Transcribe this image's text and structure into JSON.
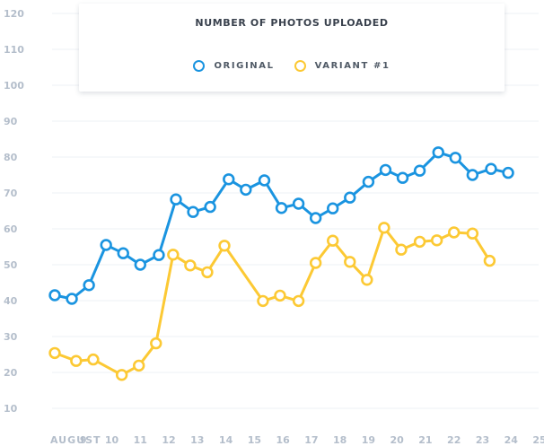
{
  "chart_data": {
    "type": "line",
    "title": "NUMBER OF PHOTOS UPLOADED",
    "xlabel": "",
    "ylabel": "",
    "grid": true,
    "legend": "top-center",
    "ylim": [
      10,
      120
    ],
    "yticks": [
      10,
      20,
      30,
      40,
      50,
      60,
      70,
      80,
      90,
      100,
      110,
      120
    ],
    "x": [
      8,
      8.5,
      9,
      9.5,
      10,
      10.5,
      11,
      11.5,
      12,
      12.5,
      13,
      13.5,
      14,
      14.5,
      15,
      15.5,
      16,
      16.5,
      17,
      17.5,
      18,
      18.5,
      19,
      19.5,
      20,
      20.5,
      21,
      21.5,
      22,
      22.5,
      23,
      23.5,
      24.5
    ],
    "xlim": [
      8,
      25
    ],
    "xticks": [
      8,
      9,
      10,
      11,
      12,
      13,
      14,
      15,
      16,
      17,
      18,
      19,
      20,
      21,
      22,
      23,
      24,
      25
    ],
    "xtick_labels": [
      "AUGUST",
      "9",
      "10",
      "11",
      "12",
      "13",
      "14",
      "15",
      "16",
      "17",
      "18",
      "19",
      "20",
      "21",
      "22",
      "23",
      "24",
      "25"
    ],
    "series": [
      {
        "name": "ORIGINAL",
        "color": "#1a94e0",
        "points": [
          {
            "x": 8.0,
            "y": 41.5
          },
          {
            "x": 8.6,
            "y": 40.5
          },
          {
            "x": 9.2,
            "y": 44.3
          },
          {
            "x": 9.8,
            "y": 55.5
          },
          {
            "x": 10.4,
            "y": 53.2
          },
          {
            "x": 11.0,
            "y": 50.0
          },
          {
            "x": 11.65,
            "y": 52.7
          },
          {
            "x": 12.25,
            "y": 68.2
          },
          {
            "x": 12.85,
            "y": 64.7
          },
          {
            "x": 13.45,
            "y": 66.1
          },
          {
            "x": 14.1,
            "y": 73.8
          },
          {
            "x": 14.7,
            "y": 70.9
          },
          {
            "x": 15.35,
            "y": 73.5
          },
          {
            "x": 15.95,
            "y": 65.8
          },
          {
            "x": 16.55,
            "y": 67.0
          },
          {
            "x": 17.15,
            "y": 63.0
          },
          {
            "x": 17.75,
            "y": 65.7
          },
          {
            "x": 18.35,
            "y": 68.7
          },
          {
            "x": 19.0,
            "y": 73.1
          },
          {
            "x": 19.6,
            "y": 76.4
          },
          {
            "x": 20.2,
            "y": 74.2
          },
          {
            "x": 20.8,
            "y": 76.2
          },
          {
            "x": 21.45,
            "y": 81.3
          },
          {
            "x": 22.05,
            "y": 79.8
          },
          {
            "x": 22.65,
            "y": 75.0
          },
          {
            "x": 23.3,
            "y": 76.7
          },
          {
            "x": 23.9,
            "y": 75.6
          }
        ]
      },
      {
        "name": "VARIANT #1",
        "color": "#fcc934",
        "points": [
          {
            "x": 8.0,
            "y": 25.4
          },
          {
            "x": 8.75,
            "y": 23.2
          },
          {
            "x": 9.35,
            "y": 23.6
          },
          {
            "x": 10.35,
            "y": 19.3
          },
          {
            "x": 10.95,
            "y": 21.9
          },
          {
            "x": 11.55,
            "y": 28.1
          },
          {
            "x": 12.15,
            "y": 52.8
          },
          {
            "x": 12.75,
            "y": 49.8
          },
          {
            "x": 13.35,
            "y": 47.9
          },
          {
            "x": 13.95,
            "y": 55.3
          },
          {
            "x": 15.3,
            "y": 39.9
          },
          {
            "x": 15.9,
            "y": 41.4
          },
          {
            "x": 16.55,
            "y": 39.9
          },
          {
            "x": 17.15,
            "y": 50.5
          },
          {
            "x": 17.75,
            "y": 56.7
          },
          {
            "x": 18.35,
            "y": 50.8
          },
          {
            "x": 18.95,
            "y": 45.8
          },
          {
            "x": 19.55,
            "y": 60.3
          },
          {
            "x": 20.15,
            "y": 54.2
          },
          {
            "x": 20.8,
            "y": 56.4
          },
          {
            "x": 21.4,
            "y": 56.8
          },
          {
            "x": 22.0,
            "y": 59.0
          },
          {
            "x": 22.65,
            "y": 58.7
          },
          {
            "x": 23.25,
            "y": 51.1
          }
        ]
      }
    ]
  }
}
